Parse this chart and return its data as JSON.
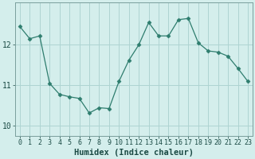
{
  "x": [
    0,
    1,
    2,
    3,
    4,
    5,
    6,
    7,
    8,
    9,
    10,
    11,
    12,
    13,
    14,
    15,
    16,
    17,
    18,
    19,
    20,
    21,
    22,
    23
  ],
  "y": [
    12.45,
    12.15,
    12.22,
    11.05,
    10.78,
    10.72,
    10.68,
    10.32,
    10.45,
    10.43,
    11.1,
    11.62,
    12.0,
    12.55,
    12.22,
    12.22,
    12.62,
    12.65,
    12.05,
    11.85,
    11.82,
    11.72,
    11.42,
    11.1
  ],
  "xlabel": "Humidex (Indice chaleur)",
  "ylim": [
    9.75,
    13.05
  ],
  "xlim": [
    -0.5,
    23.5
  ],
  "yticks": [
    10,
    11,
    12
  ],
  "xticks": [
    0,
    1,
    2,
    3,
    4,
    5,
    6,
    7,
    8,
    9,
    10,
    11,
    12,
    13,
    14,
    15,
    16,
    17,
    18,
    19,
    20,
    21,
    22,
    23
  ],
  "line_color": "#2e7d6e",
  "marker": "D",
  "marker_size": 2.5,
  "bg_color": "#d4eeec",
  "grid_color": "#aed4d2",
  "axis_color": "#7a9e9c",
  "xlabel_fontsize": 7.5,
  "ytick_fontsize": 7,
  "xtick_fontsize": 6
}
